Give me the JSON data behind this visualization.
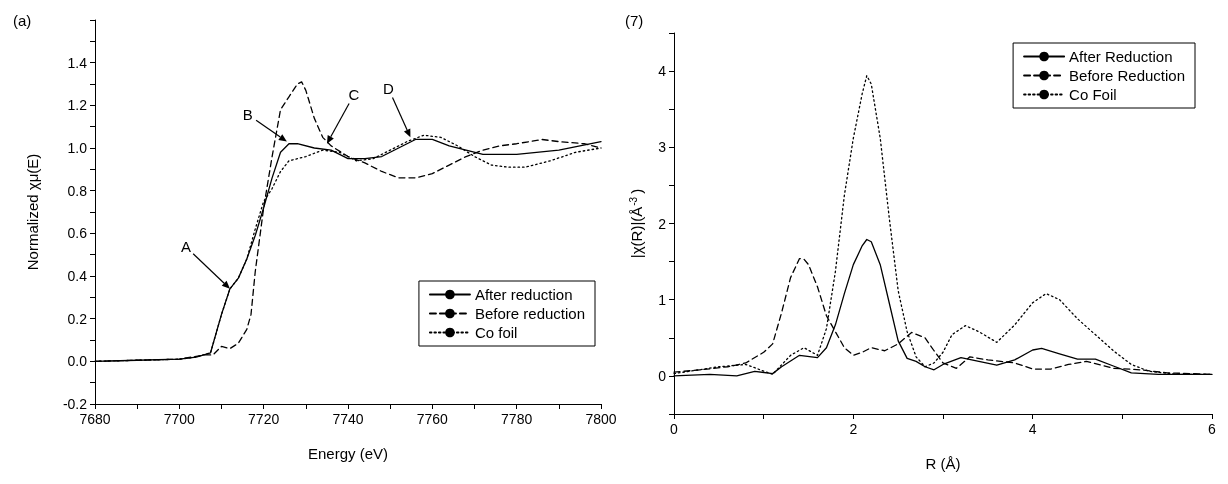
{
  "chart_data": [
    {
      "type": "line",
      "title": "(a)",
      "xlabel": "Energy (eV)",
      "ylabel": "Normalized χμ(E)",
      "xlim": [
        7680,
        7800
      ],
      "ylim": [
        -0.2,
        1.6
      ],
      "xticks": [
        7680,
        {
          "value": 7690,
          "label": null
        },
        7700,
        {
          "value": 7710,
          "label": null
        },
        7720,
        {
          "value": 7730,
          "label": null
        },
        7740,
        {
          "value": 7750,
          "label": null
        },
        7760,
        {
          "value": 7770,
          "label": null
        },
        7780,
        {
          "value": 7790,
          "label": null
        },
        7800
      ],
      "yticks": [
        -0.2,
        {
          "value": -0.1,
          "label": null
        },
        {
          "value": 0,
          "label": "0.0"
        },
        {
          "value": 0.1,
          "label": null
        },
        0.2,
        {
          "value": 0.3,
          "label": null
        },
        0.4,
        {
          "value": 0.5,
          "label": null
        },
        0.6,
        {
          "value": 0.7,
          "label": null
        },
        0.8,
        {
          "value": 0.9,
          "label": null
        },
        {
          "value": 1,
          "label": "1.0"
        },
        {
          "value": 1.1,
          "label": null
        },
        1.2,
        {
          "value": 1.3,
          "label": null
        },
        1.4,
        {
          "value": 1.5,
          "label": null
        },
        {
          "value": 1.6,
          "label": null
        }
      ],
      "grid": false,
      "legend": "bottom right",
      "annotations": [
        {
          "text": "A",
          "x": 7712,
          "y": 0.34
        },
        {
          "text": "B",
          "x": 7725.5,
          "y": 1.03
        },
        {
          "text": "C",
          "x": 7735,
          "y": 1.02
        },
        {
          "text": "D",
          "x": 7754.8,
          "y": 1.05
        }
      ],
      "series": [
        {
          "name": "After reduction",
          "color": "#000000",
          "line_style": "solid",
          "x": [
            7680,
            7690,
            7700,
            7704,
            7707.4,
            7710,
            7712,
            7714,
            7716,
            7718,
            7720,
            7722,
            7724,
            7726,
            7728,
            7732,
            7736,
            7740,
            7744,
            7748,
            7752,
            7756,
            7760,
            7764,
            7768,
            7772,
            7780,
            7790,
            7800
          ],
          "values": [
            0.0,
            0.005,
            0.01,
            0.02,
            0.04,
            0.22,
            0.34,
            0.39,
            0.48,
            0.59,
            0.72,
            0.86,
            0.98,
            1.02,
            1.02,
            1.0,
            0.99,
            0.95,
            0.95,
            0.96,
            1.0,
            1.04,
            1.04,
            1.01,
            0.99,
            0.97,
            0.97,
            0.99,
            1.03
          ]
        },
        {
          "name": "Before reduction",
          "color": "#000000",
          "line_style": "dashed",
          "x": [
            7680,
            7690,
            7700,
            7706,
            7708,
            7710,
            7712,
            7714,
            7716,
            7717,
            7718,
            7720,
            7722,
            7724,
            7726,
            7728,
            7729,
            7730,
            7732,
            7734,
            7736,
            7740,
            7744,
            7748,
            7752,
            7756,
            7760,
            7764,
            7768,
            7772,
            7776,
            7780,
            7786,
            7790,
            7796,
            7800
          ],
          "values": [
            0.0,
            0.005,
            0.01,
            0.03,
            0.03,
            0.07,
            0.06,
            0.085,
            0.15,
            0.22,
            0.42,
            0.72,
            0.96,
            1.18,
            1.24,
            1.3,
            1.31,
            1.27,
            1.14,
            1.05,
            1.01,
            0.96,
            0.93,
            0.89,
            0.86,
            0.86,
            0.88,
            0.92,
            0.96,
            0.99,
            1.01,
            1.02,
            1.04,
            1.03,
            1.02,
            1.0
          ]
        },
        {
          "name": "Co foil",
          "color": "#000000",
          "line_style": "dotted",
          "x": [
            7680,
            7690,
            7700,
            7704,
            7707.4,
            7710,
            7712,
            7714,
            7716,
            7718,
            7720,
            7722,
            7724,
            7726,
            7730,
            7734,
            7738,
            7742,
            7746,
            7750,
            7754,
            7758,
            7762,
            7766,
            7770,
            7774,
            7778,
            7782,
            7788,
            7794,
            7800
          ],
          "values": [
            0.0,
            0.005,
            0.01,
            0.02,
            0.04,
            0.22,
            0.34,
            0.39,
            0.48,
            0.62,
            0.75,
            0.81,
            0.89,
            0.94,
            0.96,
            0.99,
            0.98,
            0.94,
            0.95,
            0.99,
            1.03,
            1.06,
            1.05,
            1.01,
            0.96,
            0.92,
            0.91,
            0.91,
            0.94,
            0.98,
            1.0
          ]
        }
      ]
    },
    {
      "type": "line",
      "title": "(7)",
      "xlabel": "R (Å)",
      "ylabel": "|χ(R)|(Å$^{-3}$)",
      "xlim": [
        0,
        6
      ],
      "ylim": [
        -0.5,
        4.5
      ],
      "xticks": [
        0,
        {
          "value": 1,
          "label": null
        },
        2,
        {
          "value": 3,
          "label": null
        },
        4,
        {
          "value": 5,
          "label": null
        },
        6
      ],
      "yticks": [
        {
          "value": -0.5,
          "label": null
        },
        0,
        {
          "value": 0.5,
          "label": null
        },
        1,
        {
          "value": 1.5,
          "label": null
        },
        2,
        {
          "value": 2.5,
          "label": null
        },
        3,
        {
          "value": 3.5,
          "label": null
        },
        4,
        {
          "value": 4.5,
          "label": null
        }
      ],
      "grid": false,
      "legend": "top right",
      "series": [
        {
          "name": "After Reduction",
          "color": "#000000",
          "line_style": "solid",
          "x": [
            0,
            0.4,
            0.7,
            0.9,
            1.1,
            1.2,
            1.4,
            1.6,
            1.7,
            1.8,
            1.9,
            2.0,
            2.1,
            2.15,
            2.2,
            2.3,
            2.4,
            2.5,
            2.6,
            2.7,
            2.8,
            2.9,
            3.0,
            3.2,
            3.4,
            3.6,
            3.8,
            4.0,
            4.1,
            4.3,
            4.5,
            4.7,
            4.9,
            5.1,
            5.4,
            6
          ],
          "values": [
            0.0,
            0.02,
            0.0,
            0.06,
            0.03,
            0.12,
            0.27,
            0.24,
            0.37,
            0.67,
            1.08,
            1.46,
            1.71,
            1.79,
            1.76,
            1.46,
            0.96,
            0.46,
            0.23,
            0.19,
            0.12,
            0.08,
            0.15,
            0.24,
            0.19,
            0.14,
            0.21,
            0.34,
            0.36,
            0.29,
            0.22,
            0.22,
            0.13,
            0.04,
            0.02,
            0.02
          ]
        },
        {
          "name": "Before Reduction",
          "color": "#000000",
          "line_style": "dashed",
          "x": [
            0,
            0.3,
            0.6,
            0.8,
            1.0,
            1.1,
            1.2,
            1.3,
            1.4,
            1.45,
            1.5,
            1.6,
            1.7,
            1.8,
            1.9,
            2.0,
            2.1,
            2.2,
            2.35,
            2.5,
            2.65,
            2.8,
            2.9,
            3.0,
            3.15,
            3.3,
            3.5,
            3.8,
            4.0,
            4.2,
            4.4,
            4.6,
            4.9,
            5.2,
            5.5,
            6
          ],
          "values": [
            0.05,
            0.08,
            0.12,
            0.17,
            0.31,
            0.42,
            0.83,
            1.29,
            1.54,
            1.53,
            1.46,
            1.17,
            0.79,
            0.58,
            0.37,
            0.27,
            0.31,
            0.37,
            0.33,
            0.42,
            0.57,
            0.5,
            0.33,
            0.17,
            0.1,
            0.25,
            0.21,
            0.17,
            0.09,
            0.09,
            0.15,
            0.19,
            0.1,
            0.08,
            0.04,
            0.02
          ]
        },
        {
          "name": "Co Foil",
          "color": "#000000",
          "line_style": "dotted",
          "x": [
            0,
            0.5,
            0.8,
            1.1,
            1.3,
            1.45,
            1.6,
            1.7,
            1.8,
            1.9,
            2.0,
            2.1,
            2.15,
            2.2,
            2.3,
            2.4,
            2.5,
            2.6,
            2.7,
            2.8,
            2.9,
            3.0,
            3.1,
            3.25,
            3.4,
            3.6,
            3.8,
            4.0,
            4.15,
            4.3,
            4.5,
            4.7,
            4.9,
            5.1,
            5.3,
            5.6,
            6
          ],
          "values": [
            0.03,
            0.12,
            0.15,
            0.02,
            0.27,
            0.37,
            0.27,
            0.62,
            1.37,
            2.37,
            3.12,
            3.71,
            3.94,
            3.83,
            3.12,
            2.08,
            1.12,
            0.58,
            0.25,
            0.12,
            0.17,
            0.31,
            0.54,
            0.66,
            0.58,
            0.44,
            0.67,
            0.96,
            1.08,
            1.0,
            0.75,
            0.54,
            0.33,
            0.15,
            0.06,
            0.02,
            0.02
          ]
        }
      ]
    }
  ]
}
